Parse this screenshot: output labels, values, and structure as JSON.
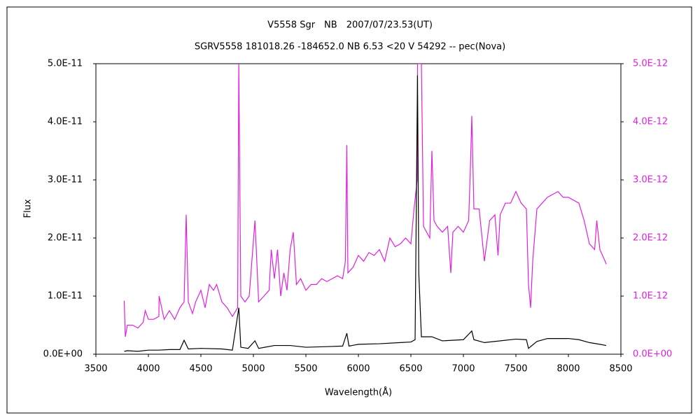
{
  "chart_data": {
    "type": "line",
    "title": "V5558 Sgr　NB　2007/07/23.53(UT)",
    "subtitle": "SGRV5558 181018.26 -184652.0 NB 6.53 <20 V 54292 -- pec(Nova)",
    "x_label": "Wavelength(Å)",
    "y_label": "Flux",
    "xlim": [
      3500,
      8500
    ],
    "xticks": [
      3500,
      4000,
      4500,
      5000,
      5500,
      6000,
      6500,
      7000,
      7500,
      8000,
      8500
    ],
    "ylim": [
      0,
      5e-11
    ],
    "yticks": [
      {
        "value": 0,
        "label": "0.0E+00"
      },
      {
        "value": 1e-11,
        "label": "1.0E-11"
      },
      {
        "value": 2e-11,
        "label": "2.0E-11"
      },
      {
        "value": 3e-11,
        "label": "3.0E-11"
      },
      {
        "value": 4e-11,
        "label": "4.0E-11"
      },
      {
        "value": 5e-11,
        "label": "5.0E-11"
      }
    ],
    "y2lim": [
      0,
      5e-12
    ],
    "y2ticks": [
      {
        "value": 0,
        "label": "0.0E+00"
      },
      {
        "value": 1e-12,
        "label": "1.0E-12"
      },
      {
        "value": 2e-12,
        "label": "2.0E-12"
      },
      {
        "value": 3e-12,
        "label": "3.0E-12"
      },
      {
        "value": 4e-12,
        "label": "4.0E-12"
      },
      {
        "value": 5e-12,
        "label": "5.0E-12"
      }
    ],
    "y2_color": "#e020e0",
    "series": [
      {
        "color": "#e020e0",
        "axis": "y2",
        "x": [
          3770,
          3780,
          3800,
          3850,
          3900,
          3950,
          3970,
          4000,
          4050,
          4100,
          4102,
          4150,
          4200,
          4250,
          4300,
          4340,
          4360,
          4380,
          4420,
          4450,
          4500,
          4540,
          4580,
          4620,
          4650,
          4700,
          4750,
          4800,
          4850,
          4861,
          4880,
          4920,
          4960,
          5015,
          5050,
          5100,
          5150,
          5170,
          5200,
          5230,
          5260,
          5290,
          5320,
          5350,
          5380,
          5410,
          5450,
          5500,
          5550,
          5600,
          5650,
          5700,
          5750,
          5800,
          5850,
          5876,
          5890,
          5900,
          5950,
          6000,
          6050,
          6100,
          6150,
          6200,
          6250,
          6300,
          6350,
          6400,
          6450,
          6500,
          6530,
          6560,
          6563,
          6600,
          6620,
          6650,
          6680,
          6700,
          6720,
          6750,
          6800,
          6850,
          6880,
          6900,
          6950,
          7000,
          7050,
          7065,
          7080,
          7100,
          7150,
          7200,
          7250,
          7300,
          7330,
          7350,
          7400,
          7450,
          7500,
          7550,
          7600,
          7620,
          7640,
          7660,
          7700,
          7750,
          7800,
          7850,
          7900,
          7950,
          8000,
          8050,
          8100,
          8150,
          8200,
          8250,
          8270,
          8300,
          8350,
          8360
        ],
        "values": [
          9.2e-13,
          3e-13,
          5e-13,
          5e-13,
          4.5e-13,
          5.5e-13,
          7.5e-13,
          6e-13,
          6e-13,
          6.5e-13,
          1e-12,
          6e-13,
          7.5e-13,
          6e-13,
          8e-13,
          9e-13,
          2.4e-12,
          9e-13,
          7e-13,
          9e-13,
          1.1e-12,
          8e-13,
          1.2e-12,
          1.1e-12,
          1.2e-12,
          9e-13,
          8e-13,
          6.5e-13,
          8e-13,
          5e-12,
          1e-12,
          9e-13,
          1e-12,
          2.3e-12,
          9e-13,
          1e-12,
          1.1e-12,
          1.8e-12,
          1.3e-12,
          1.8e-12,
          1e-12,
          1.4e-12,
          1.1e-12,
          1.8e-12,
          2.1e-12,
          1.2e-12,
          1.3e-12,
          1.1e-12,
          1.2e-12,
          1.2e-12,
          1.3e-12,
          1.25e-12,
          1.3e-12,
          1.35e-12,
          1.3e-12,
          1.6e-12,
          3.6e-12,
          1.4e-12,
          1.5e-12,
          1.7e-12,
          1.6e-12,
          1.75e-12,
          1.7e-12,
          1.8e-12,
          1.6e-12,
          2e-12,
          1.85e-12,
          1.9e-12,
          2e-12,
          1.9e-12,
          2.5e-12,
          3e-12,
          5e-12,
          5e-12,
          2.2e-12,
          2.1e-12,
          2e-12,
          3.5e-12,
          2.3e-12,
          2.2e-12,
          2.1e-12,
          2.2e-12,
          1.4e-12,
          2.1e-12,
          2.2e-12,
          2.1e-12,
          2.3e-12,
          3.1e-12,
          4.1e-12,
          2.5e-12,
          2.5e-12,
          1.6e-12,
          2.3e-12,
          2.4e-12,
          1.7e-12,
          2.4e-12,
          2.6e-12,
          2.6e-12,
          2.8e-12,
          2.6e-12,
          2.5e-12,
          1.2e-12,
          8e-13,
          1.6e-12,
          2.5e-12,
          2.6e-12,
          2.7e-12,
          2.75e-12,
          2.8e-12,
          2.7e-12,
          2.7e-12,
          2.65e-12,
          2.6e-12,
          2.3e-12,
          1.9e-12,
          1.8e-12,
          2.3e-12,
          1.8e-12,
          1.6e-12,
          1.55e-12
        ]
      },
      {
        "color": "#000000",
        "x": [
          3770,
          3800,
          3900,
          4000,
          4100,
          4200,
          4300,
          4340,
          4380,
          4500,
          4700,
          4800,
          4861,
          4880,
          4950,
          5015,
          5050,
          5200,
          5350,
          5500,
          5700,
          5850,
          5890,
          5910,
          6000,
          6200,
          6400,
          6500,
          6540,
          6563,
          6575,
          6600,
          6700,
          6800,
          7000,
          7080,
          7100,
          7200,
          7300,
          7500,
          7600,
          7620,
          7700,
          7800,
          8000,
          8100,
          8200,
          8300,
          8360
        ],
        "values": [
          5e-13,
          6e-13,
          5e-13,
          7e-13,
          7e-13,
          8e-13,
          8e-13,
          2.4e-12,
          9e-13,
          1e-12,
          9e-13,
          7e-13,
          8e-12,
          1.2e-12,
          1e-12,
          2.3e-12,
          1e-12,
          1.5e-12,
          1.5e-12,
          1.2e-12,
          1.3e-12,
          1.4e-12,
          3.6e-12,
          1.4e-12,
          1.7e-12,
          1.8e-12,
          2e-12,
          2.1e-12,
          2.5e-12,
          4.8e-11,
          1.4e-11,
          3e-12,
          3e-12,
          2.3e-12,
          2.5e-12,
          4e-12,
          2.5e-12,
          2e-12,
          2.2e-12,
          2.6e-12,
          2.5e-12,
          1e-12,
          2.2e-12,
          2.7e-12,
          2.7e-12,
          2.5e-12,
          2e-12,
          1.7e-12,
          1.5e-12
        ]
      }
    ]
  }
}
